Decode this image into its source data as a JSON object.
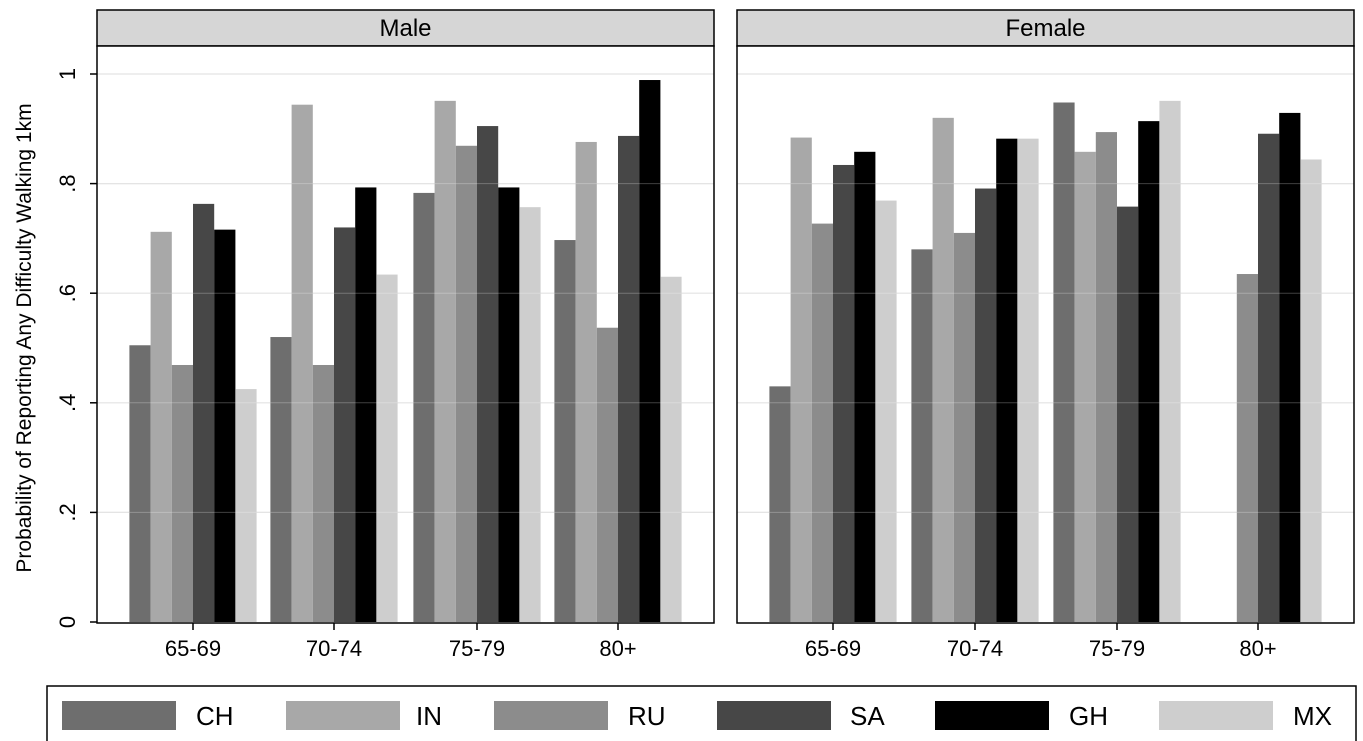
{
  "chart_data": {
    "type": "bar",
    "ylabel": "Probability of Reporting Any Difficulty Walking 1km",
    "ylim": [
      0,
      1.05
    ],
    "yticks": [
      0,
      0.2,
      0.4,
      0.6,
      0.8,
      1
    ],
    "ytick_labels": [
      "0",
      ".2",
      ".4",
      ".6",
      ".8",
      "1"
    ],
    "grid": true,
    "legend_position": "bottom",
    "categories": [
      "65-69",
      "70-74",
      "75-79",
      "80+"
    ],
    "series_names": [
      "CH",
      "IN",
      "RU",
      "SA",
      "GH",
      "MX"
    ],
    "series_colors": [
      "#6e6e6e",
      "#a8a8a8",
      "#8c8c8c",
      "#474747",
      "#000000",
      "#cecece"
    ],
    "panels": [
      {
        "title": "Male",
        "series": [
          {
            "name": "CH",
            "values": [
              0.505,
              0.52,
              0.783,
              0.697
            ]
          },
          {
            "name": "IN",
            "values": [
              0.712,
              0.944,
              0.951,
              0.876
            ]
          },
          {
            "name": "RU",
            "values": [
              0.469,
              0.469,
              0.869,
              0.537
            ]
          },
          {
            "name": "SA",
            "values": [
              0.763,
              0.72,
              0.905,
              0.887
            ]
          },
          {
            "name": "GH",
            "values": [
              0.716,
              0.793,
              0.793,
              0.989
            ]
          },
          {
            "name": "MX",
            "values": [
              0.425,
              0.634,
              0.757,
              0.63
            ]
          }
        ]
      },
      {
        "title": "Female",
        "series": [
          {
            "name": "CH",
            "values": [
              0.43,
              0.68,
              0.948,
              null
            ]
          },
          {
            "name": "IN",
            "values": [
              0.884,
              0.92,
              0.858,
              null
            ]
          },
          {
            "name": "RU",
            "values": [
              0.727,
              0.71,
              0.894,
              0.635
            ]
          },
          {
            "name": "SA",
            "values": [
              0.834,
              0.791,
              0.758,
              0.891
            ]
          },
          {
            "name": "GH",
            "values": [
              0.858,
              0.882,
              0.914,
              0.929
            ]
          },
          {
            "name": "MX",
            "values": [
              0.769,
              0.882,
              0.951,
              0.844
            ]
          }
        ]
      }
    ]
  }
}
